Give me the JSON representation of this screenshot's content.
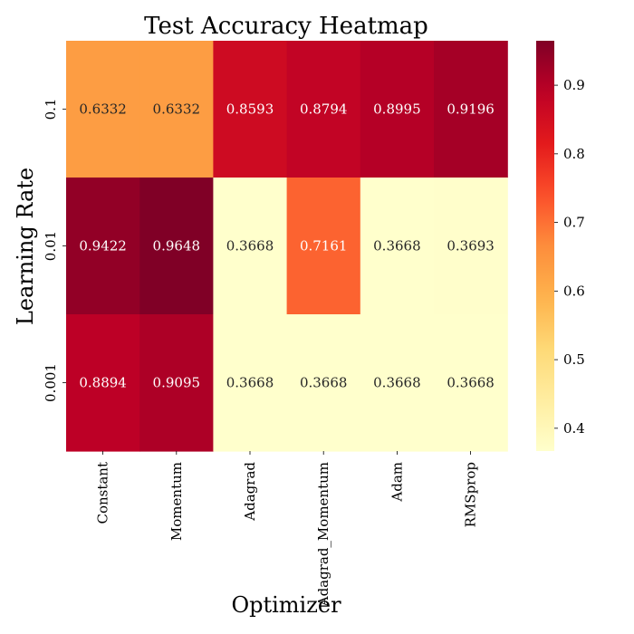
{
  "chart_data": {
    "type": "heatmap",
    "title": "Test Accuracy Heatmap",
    "xlabel": "Optimizer",
    "ylabel": "Learning Rate",
    "x_categories": [
      "Constant",
      "Momentum",
      "Adagrad",
      "Adagrad_Momentum",
      "Adam",
      "RMSprop"
    ],
    "y_categories": [
      "0.1",
      "0.01",
      "0.001"
    ],
    "values": [
      [
        0.6332,
        0.6332,
        0.8593,
        0.8794,
        0.8995,
        0.9196
      ],
      [
        0.9422,
        0.9648,
        0.3668,
        0.7161,
        0.3668,
        0.3693
      ],
      [
        0.8894,
        0.9095,
        0.3668,
        0.3668,
        0.3668,
        0.3668
      ]
    ],
    "value_labels": [
      [
        "0.6332",
        "0.6332",
        "0.8593",
        "0.8794",
        "0.8995",
        "0.9196"
      ],
      [
        "0.9422",
        "0.9648",
        "0.3668",
        "0.7161",
        "0.3668",
        "0.3693"
      ],
      [
        "0.8894",
        "0.9095",
        "0.3668",
        "0.3668",
        "0.3668",
        "0.3668"
      ]
    ],
    "colormap": "YlOrRd",
    "colorbar": {
      "vmin": 0.3668,
      "vmax": 0.9648,
      "ticks": [
        0.4,
        0.5,
        0.6,
        0.7,
        0.8,
        0.9
      ],
      "tick_labels": [
        "0.4",
        "0.5",
        "0.6",
        "0.7",
        "0.8",
        "0.9"
      ]
    },
    "annot_colors": {
      "dark": "#262626",
      "light": "#ffffff"
    }
  }
}
